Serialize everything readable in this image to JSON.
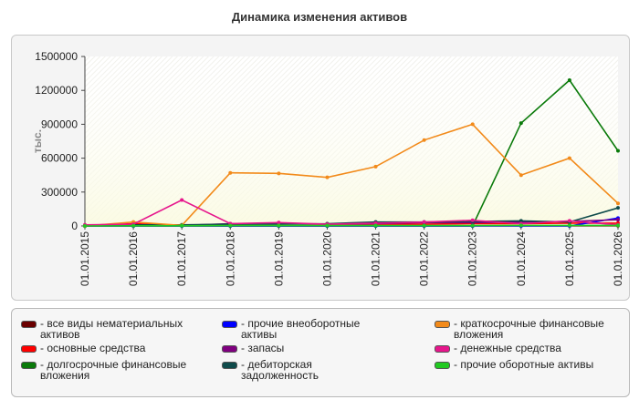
{
  "chart_data": {
    "type": "line",
    "title": "Динамика изменения активов",
    "ylabel": "тыс.",
    "xlabel": "",
    "ylim": [
      0,
      1500000
    ],
    "yticks": [
      0,
      300000,
      600000,
      900000,
      1200000,
      1500000
    ],
    "grid": false,
    "legend_position": "bottom",
    "categories": [
      "01.01.2015",
      "01.01.2016",
      "01.01.2017",
      "01.01.2018",
      "01.01.2019",
      "01.01.2020",
      "01.01.2021",
      "01.01.2022",
      "01.01.2023",
      "01.01.2024",
      "01.01.2025",
      "01.01.2026"
    ],
    "series": [
      {
        "name": "- все виды нематериальных активов",
        "color": "#6b0000",
        "values": [
          0,
          2000,
          2000,
          2000,
          2000,
          2000,
          2000,
          2000,
          2000,
          2000,
          2000,
          2000
        ]
      },
      {
        "name": "- основные средства",
        "color": "#ff0000",
        "values": [
          5000,
          20000,
          5000,
          15000,
          20000,
          15000,
          15000,
          15000,
          20000,
          20000,
          25000,
          25000
        ]
      },
      {
        "name": "- долгосрочные финансовые вложения",
        "color": "#0a7a0a",
        "values": [
          0,
          0,
          0,
          0,
          0,
          0,
          0,
          0,
          0,
          910000,
          1290000,
          665000
        ]
      },
      {
        "name": "- прочие внеоборотные активы",
        "color": "#0000ff",
        "values": [
          0,
          0,
          0,
          0,
          0,
          0,
          0,
          0,
          0,
          0,
          0,
          70000
        ]
      },
      {
        "name": "- запасы",
        "color": "#800080",
        "values": [
          0,
          5000,
          5000,
          20000,
          20000,
          15000,
          20000,
          30000,
          30000,
          35000,
          40000,
          55000
        ]
      },
      {
        "name": "- дебиторская задолженность",
        "color": "#0f4b4b",
        "values": [
          5000,
          10000,
          10000,
          15000,
          15000,
          20000,
          35000,
          35000,
          40000,
          45000,
          35000,
          160000
        ]
      },
      {
        "name": "- краткосрочные финансовые вложения",
        "color": "#f28a1a",
        "values": [
          0,
          35000,
          5000,
          470000,
          465000,
          430000,
          525000,
          760000,
          900000,
          450000,
          600000,
          200000
        ]
      },
      {
        "name": "- денежные средства",
        "color": "#e6168c",
        "values": [
          10000,
          15000,
          230000,
          20000,
          30000,
          15000,
          25000,
          35000,
          50000,
          20000,
          45000,
          10000
        ]
      },
      {
        "name": "- прочие оборотные активы",
        "color": "#22c922",
        "values": [
          0,
          2000,
          2000,
          3000,
          3000,
          3000,
          3000,
          3000,
          3000,
          5000,
          5000,
          5000
        ]
      }
    ]
  }
}
